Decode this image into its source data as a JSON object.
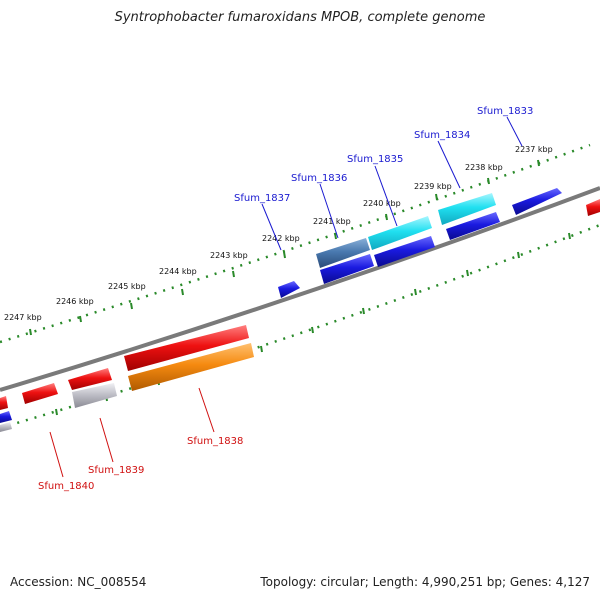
{
  "title": "Syntrophobacter fumaroxidans MPOB, complete genome",
  "footer": {
    "accession": "Accession: NC_008554",
    "summary": "Topology: circular; Length: 4,990,251 bp; Genes: 4,127"
  },
  "colors": {
    "backbone": "#7a7a7a",
    "tick": "#2a8a2a",
    "label_top": "#1a1ad0",
    "label_bottom": "#d01010",
    "gene_red": "#ee1111",
    "gene_blue": "#1a1ae0",
    "gene_cyan": "#20e0f0",
    "gene_steel": "#4a7ab0",
    "gene_orange": "#f58a10",
    "gene_gray": "#c0c0c8"
  },
  "scale_labels": [
    "2237 kbp",
    "2238 kbp",
    "2239 kbp",
    "2240 kbp",
    "2241 kbp",
    "2242 kbp",
    "2243 kbp",
    "2244 kbp",
    "2245 kbp",
    "2246 kbp",
    "2247 kbp"
  ],
  "gene_labels": {
    "Sfum_1833": "Sfum_1833",
    "Sfum_1834": "Sfum_1834",
    "Sfum_1835": "Sfum_1835",
    "Sfum_1836": "Sfum_1836",
    "Sfum_1837": "Sfum_1837",
    "Sfum_1838": "Sfum_1838",
    "Sfum_1839": "Sfum_1839",
    "Sfum_1840": "Sfum_1840"
  }
}
